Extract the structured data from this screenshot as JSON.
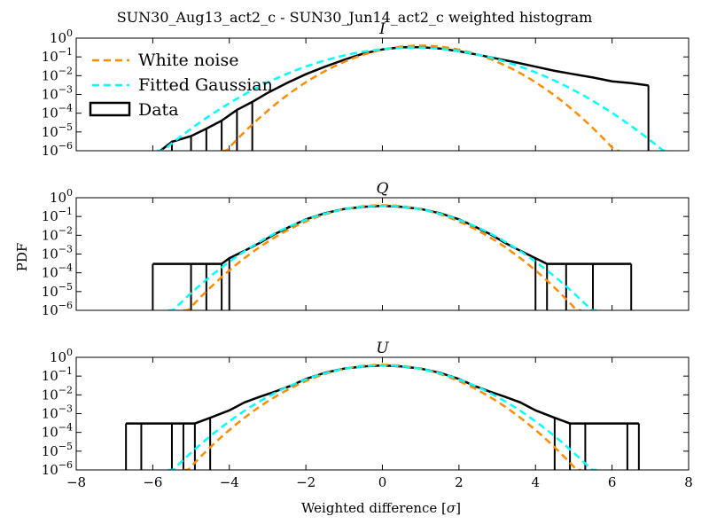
{
  "figure": {
    "suptitle": "SUN30_Aug13_act2_c - SUN30_Jun14_act2_c weighted histogram",
    "ylabel": "PDF",
    "xlabel": "Weighted difference [σ]",
    "legend": [
      {
        "label": "White noise",
        "color": "#ff8c00",
        "style": "dashed"
      },
      {
        "label": "Fitted Gaussian",
        "color": "#00ffff",
        "style": "dashed"
      },
      {
        "label": "Data",
        "color": "#000000",
        "style": "box"
      }
    ]
  },
  "chart_data": [
    {
      "type": "line",
      "title": "I",
      "xlim": [
        -8,
        8
      ],
      "ylim": [
        1e-06,
        1
      ],
      "yscale": "log",
      "yticks": [
        "10^0",
        "10^-1",
        "10^-2",
        "10^-3",
        "10^-4",
        "10^-5",
        "10^-6"
      ],
      "xticks": [
        "−8",
        "−6",
        "−4",
        "−2",
        "0",
        "2",
        "4",
        "6",
        "8"
      ],
      "show_xticklabels": false,
      "legend_position": "upper-left",
      "series": [
        {
          "name": "White noise",
          "color": "#ff8c00",
          "model": {
            "mu": 1.0,
            "sigma": 1.0,
            "amp": 0.399
          }
        },
        {
          "name": "Fitted Gaussian",
          "color": "#00ffff",
          "model": {
            "mu": 0.8,
            "sigma": 1.3,
            "amp": 0.31
          }
        },
        {
          "name": "Data",
          "color": "#000000",
          "points": [
            [
              -5.8,
              1e-06
            ],
            [
              -5.5,
              3e-06
            ],
            [
              -5.0,
              6e-06
            ],
            [
              -4.6,
              1.5e-05
            ],
            [
              -4.2,
              4e-05
            ],
            [
              -3.8,
              0.00015
            ],
            [
              -3.4,
              0.0004
            ],
            [
              -3.0,
              0.0012
            ],
            [
              -2.5,
              0.004
            ],
            [
              -2.0,
              0.012
            ],
            [
              -1.5,
              0.03
            ],
            [
              -1.0,
              0.07
            ],
            [
              -0.5,
              0.15
            ],
            [
              0.0,
              0.25
            ],
            [
              0.5,
              0.33
            ],
            [
              1.0,
              0.33
            ],
            [
              1.5,
              0.28
            ],
            [
              2.0,
              0.2
            ],
            [
              2.5,
              0.13
            ],
            [
              3.0,
              0.08
            ],
            [
              3.5,
              0.05
            ],
            [
              4.0,
              0.03
            ],
            [
              4.5,
              0.018
            ],
            [
              5.0,
              0.012
            ],
            [
              5.5,
              0.008
            ],
            [
              6.0,
              0.005
            ],
            [
              6.5,
              0.004
            ],
            [
              6.95,
              0.003
            ]
          ]
        }
      ]
    },
    {
      "type": "line",
      "title": "Q",
      "xlim": [
        -8,
        8
      ],
      "ylim": [
        1e-06,
        1
      ],
      "yscale": "log",
      "yticks": [
        "10^0",
        "10^-1",
        "10^-2",
        "10^-3",
        "10^-4",
        "10^-5",
        "10^-6"
      ],
      "xticks": [
        "−8",
        "−6",
        "−4",
        "−2",
        "0",
        "2",
        "4",
        "6",
        "8"
      ],
      "show_xticklabels": false,
      "series": [
        {
          "name": "White noise",
          "color": "#ff8c00",
          "model": {
            "mu": 0.0,
            "sigma": 1.0,
            "amp": 0.399
          }
        },
        {
          "name": "Fitted Gaussian",
          "color": "#00ffff",
          "model": {
            "mu": 0.0,
            "sigma": 1.08,
            "amp": 0.37
          }
        },
        {
          "name": "Data",
          "color": "#000000",
          "points": [
            [
              -6.0,
              0.0003
            ],
            [
              -5.0,
              0.0003
            ],
            [
              -4.6,
              0.0003
            ],
            [
              -4.2,
              0.0003
            ],
            [
              -4.0,
              0.0006
            ],
            [
              -3.6,
              0.0015
            ],
            [
              -3.2,
              0.004
            ],
            [
              -2.8,
              0.012
            ],
            [
              -2.4,
              0.03
            ],
            [
              -2.0,
              0.07
            ],
            [
              -1.5,
              0.15
            ],
            [
              -1.0,
              0.25
            ],
            [
              -0.5,
              0.33
            ],
            [
              0.0,
              0.37
            ],
            [
              0.5,
              0.33
            ],
            [
              1.0,
              0.25
            ],
            [
              1.5,
              0.15
            ],
            [
              2.0,
              0.07
            ],
            [
              2.4,
              0.03
            ],
            [
              2.8,
              0.012
            ],
            [
              3.2,
              0.004
            ],
            [
              3.6,
              0.0015
            ],
            [
              4.0,
              0.0006
            ],
            [
              4.3,
              0.0003
            ],
            [
              4.8,
              0.0003
            ],
            [
              5.5,
              0.0003
            ],
            [
              6.5,
              0.0003
            ]
          ]
        }
      ]
    },
    {
      "type": "line",
      "title": "U",
      "xlim": [
        -8,
        8
      ],
      "ylim": [
        1e-06,
        1
      ],
      "yscale": "log",
      "yticks": [
        "10^0",
        "10^-1",
        "10^-2",
        "10^-3",
        "10^-4",
        "10^-5",
        "10^-6"
      ],
      "xticks": [
        "−8",
        "−6",
        "−4",
        "−2",
        "0",
        "2",
        "4",
        "6",
        "8"
      ],
      "show_xticklabels": true,
      "series": [
        {
          "name": "White noise",
          "color": "#ff8c00",
          "model": {
            "mu": 0.0,
            "sigma": 1.0,
            "amp": 0.399
          }
        },
        {
          "name": "Fitted Gaussian",
          "color": "#00ffff",
          "model": {
            "mu": 0.0,
            "sigma": 1.08,
            "amp": 0.37
          }
        },
        {
          "name": "Data",
          "color": "#000000",
          "points": [
            [
              -6.7,
              0.0003
            ],
            [
              -6.3,
              0.0003
            ],
            [
              -5.5,
              0.0003
            ],
            [
              -5.2,
              0.0003
            ],
            [
              -4.9,
              0.0003
            ],
            [
              -4.5,
              0.0006
            ],
            [
              -4.0,
              0.0015
            ],
            [
              -3.6,
              0.004
            ],
            [
              -3.2,
              0.008
            ],
            [
              -2.8,
              0.015
            ],
            [
              -2.4,
              0.03
            ],
            [
              -2.0,
              0.07
            ],
            [
              -1.5,
              0.15
            ],
            [
              -1.0,
              0.25
            ],
            [
              -0.5,
              0.33
            ],
            [
              0.0,
              0.37
            ],
            [
              0.5,
              0.33
            ],
            [
              1.0,
              0.25
            ],
            [
              1.5,
              0.15
            ],
            [
              2.0,
              0.07
            ],
            [
              2.4,
              0.03
            ],
            [
              2.8,
              0.015
            ],
            [
              3.2,
              0.008
            ],
            [
              3.6,
              0.004
            ],
            [
              4.0,
              0.0015
            ],
            [
              4.5,
              0.0006
            ],
            [
              4.9,
              0.0003
            ],
            [
              5.3,
              0.0003
            ],
            [
              6.4,
              0.0003
            ],
            [
              6.7,
              0.0003
            ]
          ]
        }
      ]
    }
  ]
}
